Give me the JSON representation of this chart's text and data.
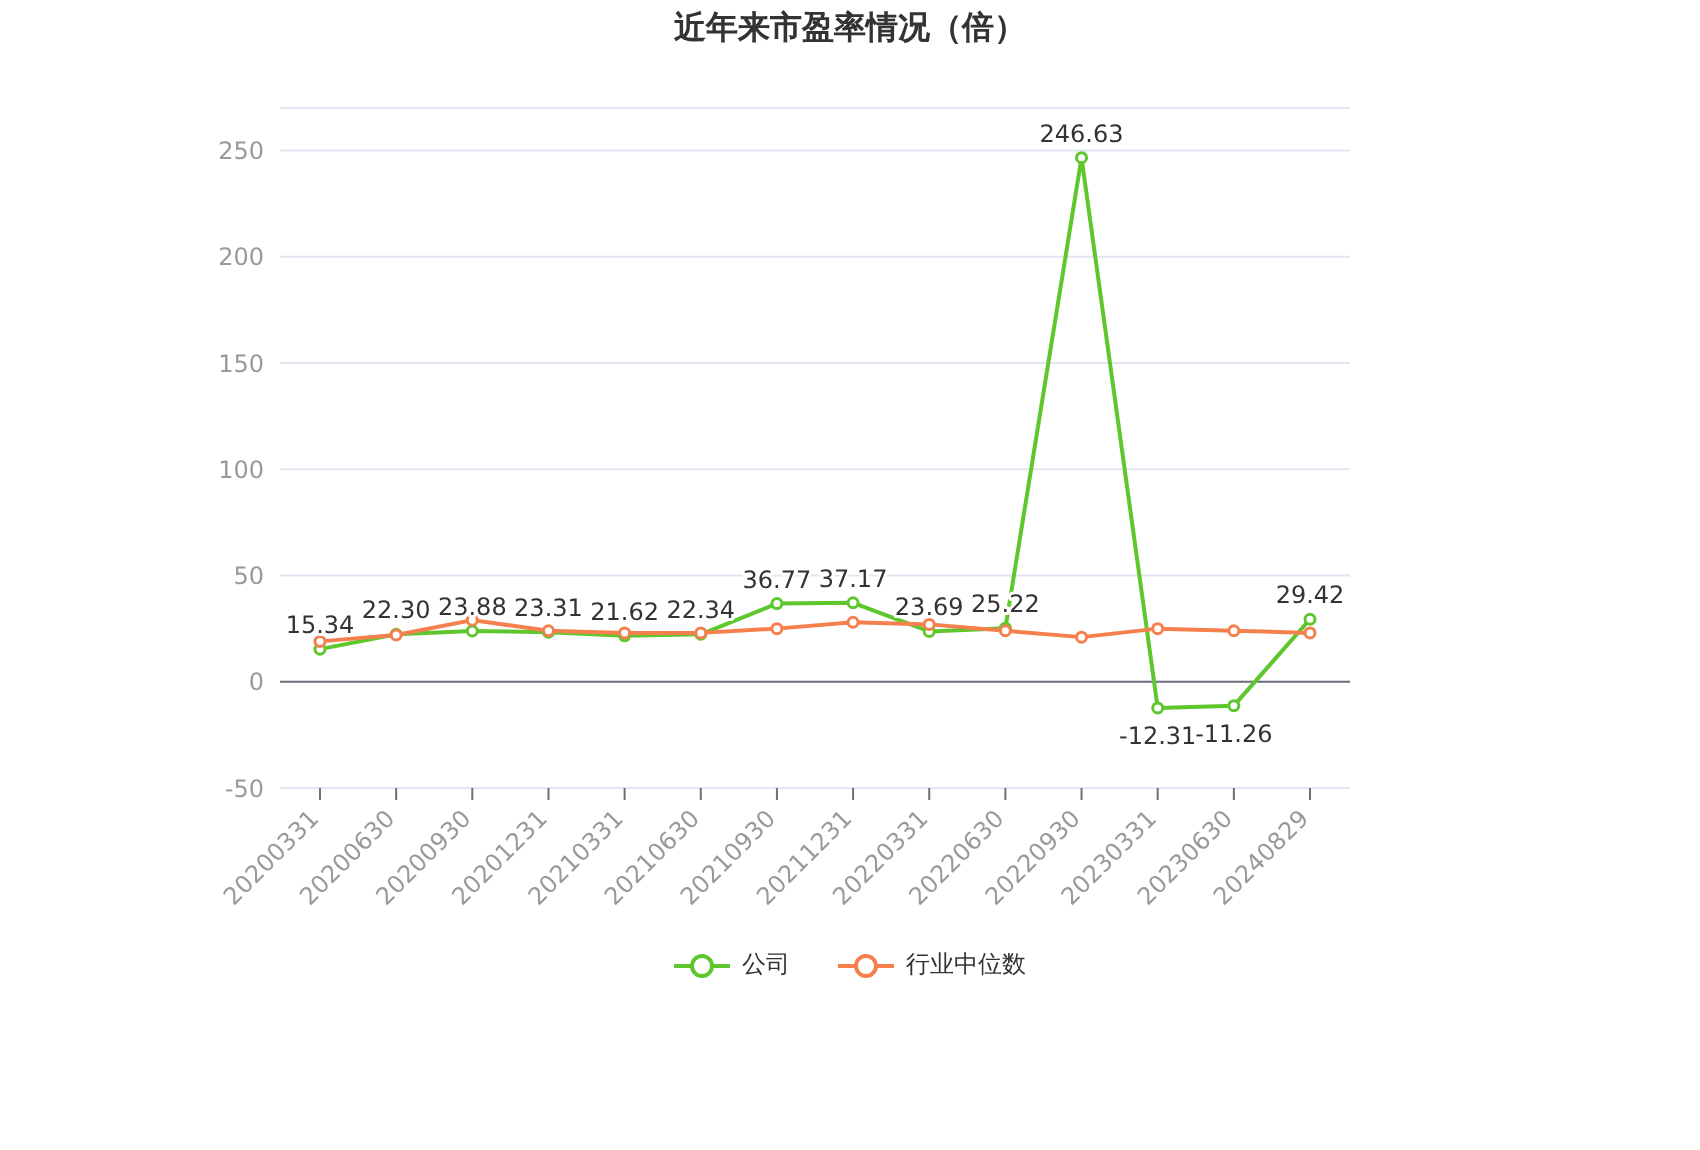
{
  "chart_data": {
    "type": "line",
    "title": "近年来市盈率情况（倍）",
    "categories": [
      "20200331",
      "20200630",
      "20200930",
      "20201231",
      "20210331",
      "20210630",
      "20210930",
      "20211231",
      "20220331",
      "20220630",
      "20220930",
      "20230331",
      "20230630",
      "20240829"
    ],
    "series": [
      {
        "name": "公司",
        "color": "#5ec72d",
        "values": [
          15.34,
          22.3,
          23.88,
          23.31,
          21.62,
          22.34,
          36.77,
          37.17,
          23.69,
          25.22,
          246.63,
          -12.31,
          -11.26,
          29.42
        ],
        "value_labels": [
          "15.34",
          "22.30",
          "23.88",
          "23.31",
          "21.62",
          "22.34",
          "36.77",
          "37.17",
          "23.69",
          "25.22",
          "246.63",
          "-12.31",
          "-11.26",
          "29.42"
        ]
      },
      {
        "name": "行业中位数",
        "color": "#f5804d",
        "values": [
          19,
          22,
          29,
          24,
          23,
          23,
          25,
          28,
          27,
          24,
          21,
          25,
          24,
          23
        ]
      }
    ],
    "ylim": [
      -50,
      270
    ],
    "yticks": [
      -50,
      0,
      50,
      100,
      150,
      200,
      250
    ],
    "grid": "y",
    "legend": "bottom",
    "marker": "circle",
    "line_style": "solid"
  }
}
